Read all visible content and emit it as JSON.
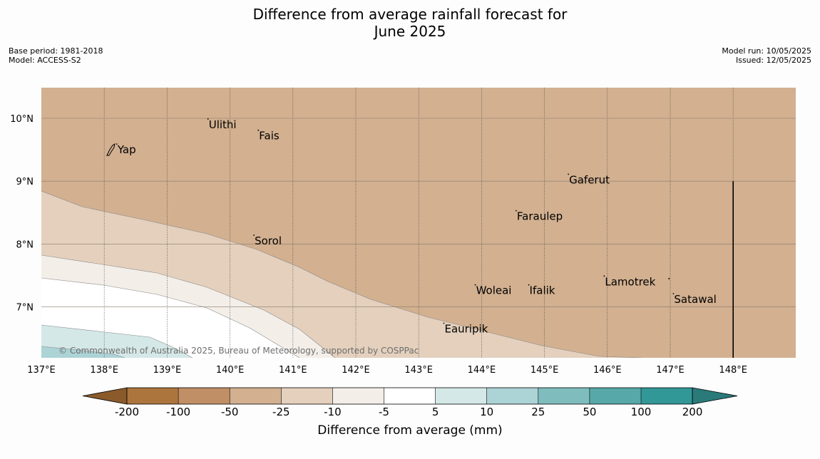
{
  "title_line1": "Difference from average rainfall forecast for",
  "title_line2": "June 2025",
  "meta_left": {
    "base_period": "Base period: 1981-2018",
    "model": "Model: ACCESS-S2"
  },
  "meta_right": {
    "model_run": "Model run: 10/05/2025",
    "issued": "Issued: 12/05/2025"
  },
  "map": {
    "lon_range": [
      137.0,
      149.0
    ],
    "lat_range": [
      6.2,
      10.5
    ],
    "lon_ticks": [
      137,
      138,
      139,
      140,
      141,
      142,
      143,
      144,
      145,
      146,
      147,
      148
    ],
    "lon_tick_labels": [
      "137°E",
      "138°E",
      "139°E",
      "140°E",
      "141°E",
      "142°E",
      "143°E",
      "144°E",
      "145°E",
      "146°E",
      "147°E",
      "148°E"
    ],
    "lat_ticks": [
      10,
      9,
      8,
      7
    ],
    "lat_tick_labels": [
      "10°N",
      "9°N",
      "8°N",
      "7°N"
    ],
    "places": [
      {
        "name": "Yap",
        "lon": 138.2,
        "lat": 9.5
      },
      {
        "name": "Ulithi",
        "lon": 139.65,
        "lat": 9.9
      },
      {
        "name": "Fais",
        "lon": 140.45,
        "lat": 9.72
      },
      {
        "name": "Sorol",
        "lon": 140.38,
        "lat": 8.05
      },
      {
        "name": "Gaferut",
        "lon": 145.38,
        "lat": 9.02
      },
      {
        "name": "Faraulep",
        "lon": 144.55,
        "lat": 8.44
      },
      {
        "name": "Woleai",
        "lon": 143.9,
        "lat": 7.26
      },
      {
        "name": "Ifalik",
        "lon": 144.75,
        "lat": 7.26
      },
      {
        "name": "Lamotrek",
        "lon": 145.95,
        "lat": 7.4
      },
      {
        "name": "Satawal",
        "lon": 147.05,
        "lat": 7.12
      },
      {
        "name": "Eauripik",
        "lon": 143.4,
        "lat": 6.65
      }
    ],
    "dateline": {
      "lon": 148.0,
      "lat_from": 6.2,
      "lat_to": 9.0
    },
    "copyright": "© Commonwealth of Australia 2025, Bureau of Meteorology, supported by COSPPac"
  },
  "colorbar": {
    "tick_labels": [
      "-200",
      "-100",
      "-50",
      "-25",
      "-10",
      "-5",
      "5",
      "10",
      "25",
      "50",
      "100",
      "200"
    ],
    "colors": [
      "#8a5a2b",
      "#ad753e",
      "#c18f66",
      "#d2b090",
      "#e4d0bd",
      "#f3eee8",
      "#ffffff",
      "#d4e8e7",
      "#acd3d5",
      "#7fbcbd",
      "#57a8a8",
      "#329797",
      "#2a7a7a"
    ],
    "label": "Difference from average (mm)"
  }
}
